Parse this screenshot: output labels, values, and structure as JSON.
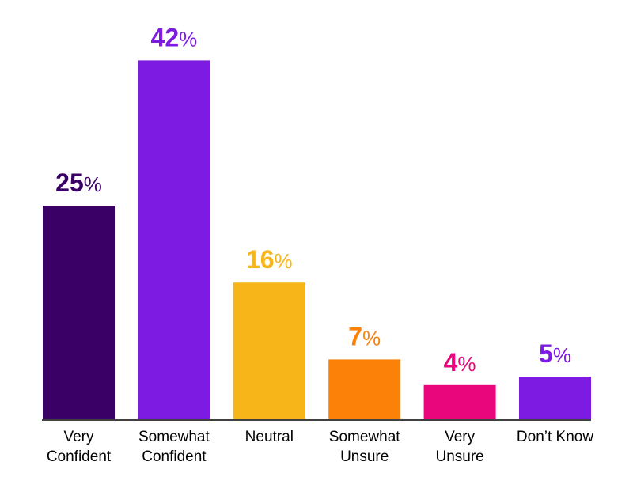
{
  "chart_data": {
    "type": "bar",
    "title": "",
    "xlabel": "",
    "ylabel": "",
    "ylim": [
      0,
      45
    ],
    "grid": false,
    "categories": [
      [
        "Very",
        "Confident"
      ],
      [
        "Somewhat",
        "Confident"
      ],
      [
        "Neutral"
      ],
      [
        "Somewhat",
        "Unsure"
      ],
      [
        "Very",
        "Unsure"
      ],
      [
        "Don’t Know"
      ]
    ],
    "values": [
      25,
      42,
      16,
      7,
      4,
      5
    ],
    "value_labels": [
      "25",
      "42",
      "16",
      "7",
      "4",
      "5"
    ],
    "value_suffix": "%",
    "colors": [
      "#3a0066",
      "#7e1be2",
      "#f8b51a",
      "#fb8109",
      "#e9057c",
      "#7e1be2"
    ]
  }
}
